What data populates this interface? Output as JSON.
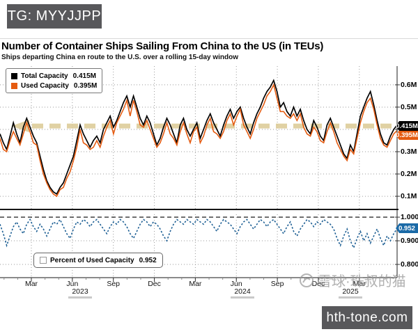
{
  "overlay_badges": {
    "top_left": {
      "text": "TG: MYYJJPP",
      "bg": "#58585b",
      "fg": "#ffffff"
    },
    "bottom_right": {
      "text": "hth-tone.com",
      "bg": "#58585b",
      "fg": "#ffffff"
    }
  },
  "header": {
    "title": "Number of Container Ships Sailing From China to the US (in TEUs)",
    "subtitle": "Ships departing China en route to the U.S. over a rolling 15-day window"
  },
  "watermark": {
    "icon": "snowball-logo",
    "text": "雪球·珠叔的猫"
  },
  "x_axis": {
    "tick_labels": [
      "Mar",
      "Jun",
      "Sep",
      "Dec",
      "Mar",
      "Jun",
      "Sep",
      "Dec",
      "Mar"
    ],
    "years": [
      "2023",
      "2024",
      "2025"
    ]
  },
  "chart_data": [
    {
      "type": "line",
      "panel": "top",
      "ylim": [
        0.044,
        0.684
      ],
      "grid": "dotted",
      "legend_position": "top-left",
      "yticks": [
        {
          "value": 0.6,
          "label": "0.6M"
        },
        {
          "value": 0.5,
          "label": "0.5M"
        },
        {
          "value": 0.4,
          "label": "0.4M"
        },
        {
          "value": 0.3,
          "label": "0.3M"
        },
        {
          "value": 0.2,
          "label": "0.2M"
        },
        {
          "value": 0.1,
          "label": "0.1M"
        }
      ],
      "legend": [
        {
          "label": "Total Capacity",
          "value": "0.415M",
          "swatch": "#000000"
        },
        {
          "label": "Used Capacity",
          "value": "0.395M",
          "swatch": "#e55b10"
        }
      ],
      "axis_badges": [
        {
          "label": "0.415M",
          "bg": "#000000",
          "fg": "#ffffff"
        },
        {
          "label": "0.395M",
          "bg": "#e55b10",
          "fg": "#ffffff"
        }
      ],
      "annotation": {
        "type": "dashed-arrow-left",
        "value": 0.415,
        "color": "#dbc993"
      },
      "series": [
        {
          "name": "Total Capacity",
          "last_value_label": "0.415M",
          "color": "#000000",
          "values": [
            0.38,
            0.34,
            0.31,
            0.37,
            0.43,
            0.38,
            0.34,
            0.41,
            0.45,
            0.41,
            0.37,
            0.34,
            0.28,
            0.22,
            0.17,
            0.14,
            0.12,
            0.11,
            0.14,
            0.16,
            0.2,
            0.24,
            0.28,
            0.35,
            0.42,
            0.38,
            0.35,
            0.32,
            0.35,
            0.37,
            0.34,
            0.4,
            0.43,
            0.46,
            0.41,
            0.44,
            0.48,
            0.52,
            0.55,
            0.5,
            0.55,
            0.5,
            0.45,
            0.42,
            0.46,
            0.43,
            0.38,
            0.33,
            0.36,
            0.41,
            0.45,
            0.42,
            0.38,
            0.34,
            0.42,
            0.45,
            0.4,
            0.37,
            0.4,
            0.43,
            0.36,
            0.4,
            0.44,
            0.47,
            0.43,
            0.4,
            0.37,
            0.42,
            0.46,
            0.49,
            0.45,
            0.48,
            0.5,
            0.45,
            0.41,
            0.38,
            0.43,
            0.47,
            0.5,
            0.54,
            0.57,
            0.59,
            0.62,
            0.57,
            0.5,
            0.52,
            0.48,
            0.46,
            0.5,
            0.46,
            0.49,
            0.44,
            0.4,
            0.38,
            0.44,
            0.41,
            0.37,
            0.35,
            0.42,
            0.45,
            0.41,
            0.37,
            0.33,
            0.29,
            0.27,
            0.33,
            0.3,
            0.38,
            0.46,
            0.5,
            0.54,
            0.57,
            0.51,
            0.44,
            0.38,
            0.34,
            0.33,
            0.37,
            0.4,
            0.42
          ]
        },
        {
          "name": "Used Capacity",
          "last_value_label": "0.395M",
          "color": "#e55b10",
          "values": [
            0.36,
            0.31,
            0.3,
            0.35,
            0.39,
            0.36,
            0.33,
            0.38,
            0.43,
            0.39,
            0.34,
            0.33,
            0.26,
            0.2,
            0.16,
            0.13,
            0.11,
            0.1,
            0.13,
            0.14,
            0.18,
            0.21,
            0.26,
            0.32,
            0.4,
            0.34,
            0.33,
            0.31,
            0.32,
            0.35,
            0.32,
            0.37,
            0.41,
            0.44,
            0.38,
            0.43,
            0.46,
            0.49,
            0.53,
            0.46,
            0.53,
            0.48,
            0.42,
            0.41,
            0.44,
            0.4,
            0.36,
            0.32,
            0.34,
            0.38,
            0.43,
            0.38,
            0.36,
            0.33,
            0.39,
            0.43,
            0.38,
            0.34,
            0.39,
            0.41,
            0.34,
            0.37,
            0.42,
            0.45,
            0.39,
            0.38,
            0.36,
            0.39,
            0.44,
            0.47,
            0.42,
            0.46,
            0.49,
            0.42,
            0.39,
            0.36,
            0.4,
            0.45,
            0.48,
            0.51,
            0.55,
            0.57,
            0.6,
            0.54,
            0.48,
            0.48,
            0.46,
            0.45,
            0.47,
            0.44,
            0.47,
            0.41,
            0.38,
            0.37,
            0.41,
            0.39,
            0.35,
            0.34,
            0.39,
            0.43,
            0.39,
            0.34,
            0.31,
            0.28,
            0.26,
            0.31,
            0.29,
            0.36,
            0.43,
            0.48,
            0.52,
            0.54,
            0.49,
            0.42,
            0.36,
            0.33,
            0.32,
            0.35,
            0.38,
            0.395
          ]
        }
      ]
    },
    {
      "type": "line",
      "panel": "bottom",
      "ylim": [
        0.747,
        1.012
      ],
      "grid": "dotted",
      "legend_position": "bottom-left",
      "yticks": [
        {
          "value": 1.0,
          "label": "1.000"
        },
        {
          "value": 0.9,
          "label": "0.900"
        },
        {
          "value": 0.8,
          "label": "0.800"
        }
      ],
      "reference_line": {
        "value": 1.0,
        "style": "dashed",
        "color": "#000000"
      },
      "legend": [
        {
          "label": "Percent of Used Capacity",
          "value": "0.952",
          "swatch": "#ffffff"
        }
      ],
      "axis_badges": [
        {
          "label": "0.952",
          "bg": "#1b6aa7",
          "fg": "#ffffff"
        }
      ],
      "series": [
        {
          "name": "Percent of Used Capacity",
          "last_value_label": "0.952",
          "color": "#1d5f94",
          "style": "dotted",
          "values": [
            0.97,
            0.93,
            0.88,
            0.92,
            0.96,
            0.98,
            0.95,
            0.93,
            0.97,
            0.99,
            0.96,
            0.94,
            0.97,
            0.95,
            0.92,
            0.95,
            0.98,
            0.97,
            0.99,
            0.96,
            0.93,
            0.91,
            0.95,
            0.98,
            0.97,
            0.99,
            0.98,
            0.96,
            0.98,
            0.99,
            0.97,
            0.95,
            0.93,
            0.96,
            0.98,
            0.97,
            0.99,
            0.98,
            0.96,
            0.93,
            0.91,
            0.94,
            0.97,
            0.99,
            0.98,
            0.96,
            0.98,
            0.97,
            0.95,
            0.92,
            0.9,
            0.94,
            0.97,
            0.99,
            0.98,
            0.97,
            0.99,
            0.98,
            0.97,
            0.99,
            0.98,
            0.97,
            0.99,
            0.98,
            0.96,
            0.94,
            0.97,
            0.99,
            0.98,
            0.97,
            0.95,
            0.93,
            0.96,
            0.98,
            0.99,
            0.97,
            0.95,
            0.97,
            0.99,
            0.98,
            0.96,
            0.98,
            0.99,
            0.97,
            0.95,
            0.93,
            0.96,
            0.98,
            0.94,
            0.92,
            0.95,
            0.97,
            0.99,
            0.98,
            0.96,
            0.98,
            0.97,
            0.99,
            0.98,
            0.97,
            0.95,
            0.91,
            0.88,
            0.92,
            0.95,
            0.9,
            0.87,
            0.91,
            0.94,
            0.9,
            0.93,
            0.89,
            0.92,
            0.95,
            0.91,
            0.88,
            0.92,
            0.9,
            0.93,
            0.952
          ]
        }
      ]
    }
  ]
}
